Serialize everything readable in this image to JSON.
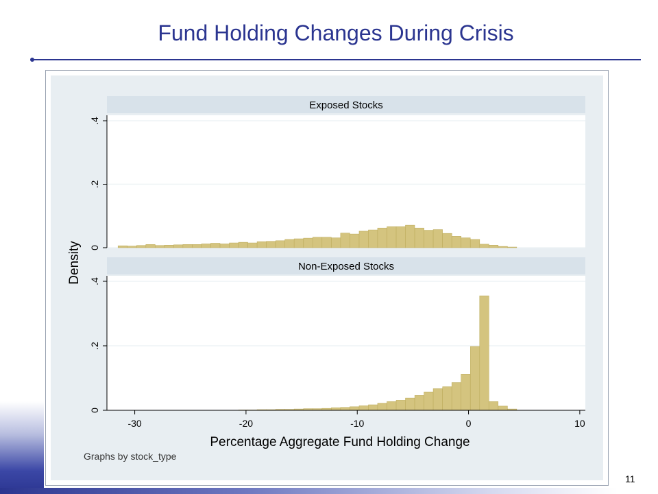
{
  "slide": {
    "title": "Fund Holding Changes During Crisis",
    "page_number": "11"
  },
  "colors": {
    "title": "#2b3590",
    "plot_background": "#e8eef2",
    "panel_header": "#d8e2ea",
    "bar_fill": "#d4c47f",
    "bar_stroke": "#bfae5f",
    "grid": "#eef3f6"
  },
  "chart_data": {
    "type": "bar",
    "histogram": true,
    "ylabel": "Density",
    "xlabel": "Percentage Aggregate Fund Holding Change",
    "note": "Graphs by stock_type",
    "xlim": [
      -32.5,
      10.5
    ],
    "ylim": [
      0,
      0.4
    ],
    "x_ticks": [
      -30,
      -20,
      -10,
      0,
      10
    ],
    "y_ticks": [
      0,
      0.2,
      0.4
    ],
    "y_tick_labels": [
      "0",
      ".2",
      ".4"
    ],
    "bin_width": 0.83,
    "grid": true,
    "panels": [
      {
        "name": "Exposed Stocks",
        "bin_starts": [
          -31.5,
          -30.67,
          -29.83,
          -29.0,
          -28.17,
          -27.33,
          -26.5,
          -25.67,
          -24.83,
          -24.0,
          -23.17,
          -22.33,
          -21.5,
          -20.67,
          -19.83,
          -19.0,
          -18.17,
          -17.33,
          -16.5,
          -15.67,
          -14.83,
          -14.0,
          -13.17,
          -12.33,
          -11.5,
          -10.67,
          -9.83,
          -9.0,
          -8.17,
          -7.33,
          -6.5,
          -5.67,
          -4.83,
          -4.0,
          -3.17,
          -2.33,
          -1.5,
          -0.67,
          0.17,
          1.0,
          1.83,
          2.67,
          3.5
        ],
        "values": [
          0.006,
          0.005,
          0.007,
          0.01,
          0.007,
          0.008,
          0.009,
          0.01,
          0.01,
          0.012,
          0.014,
          0.012,
          0.015,
          0.017,
          0.015,
          0.019,
          0.02,
          0.022,
          0.026,
          0.028,
          0.03,
          0.033,
          0.033,
          0.031,
          0.046,
          0.043,
          0.052,
          0.056,
          0.062,
          0.066,
          0.066,
          0.071,
          0.062,
          0.055,
          0.057,
          0.045,
          0.036,
          0.031,
          0.026,
          0.011,
          0.008,
          0.004,
          0.002
        ]
      },
      {
        "name": "Non-Exposed Stocks",
        "bin_starts": [
          -20.67,
          -19.83,
          -19.0,
          -18.17,
          -17.33,
          -16.5,
          -15.67,
          -14.83,
          -14.0,
          -13.17,
          -12.33,
          -11.5,
          -10.67,
          -9.83,
          -9.0,
          -8.17,
          -7.33,
          -6.5,
          -5.67,
          -4.83,
          -4.0,
          -3.17,
          -2.33,
          -1.5,
          -0.67,
          0.17,
          1.0,
          1.83,
          2.67,
          3.5
        ],
        "values": [
          0.001,
          0.001,
          0.002,
          0.002,
          0.003,
          0.003,
          0.004,
          0.005,
          0.005,
          0.006,
          0.008,
          0.009,
          0.011,
          0.014,
          0.017,
          0.022,
          0.027,
          0.031,
          0.038,
          0.046,
          0.057,
          0.067,
          0.073,
          0.086,
          0.112,
          0.198,
          0.355,
          0.027,
          0.013,
          0.004
        ]
      }
    ]
  }
}
